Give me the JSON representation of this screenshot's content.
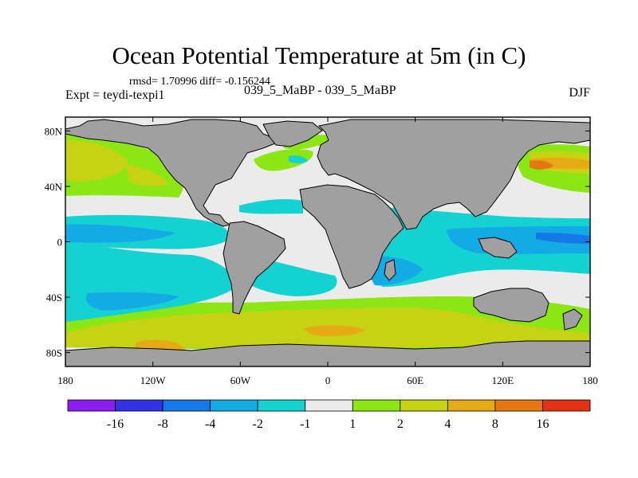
{
  "title": "Ocean Potential Temperature at 5m (in C)",
  "stats_text": "rmsd= 1.70996 diff= -0.156244",
  "left_label": "Expt = teydi-texpi1",
  "center_label": "039_5_MaBP - 039_5_MaBP",
  "right_label": "DJF",
  "map": {
    "projection": "cylindrical-equidistant",
    "lon_range": [
      -180,
      180
    ],
    "lat_range": [
      -90,
      90
    ],
    "x_ticks": [
      {
        "lon": -180,
        "label": "180"
      },
      {
        "lon": -120,
        "label": "120W"
      },
      {
        "lon": -60,
        "label": "60W"
      },
      {
        "lon": 0,
        "label": "0"
      },
      {
        "lon": 60,
        "label": "60E"
      },
      {
        "lon": 120,
        "label": "120E"
      },
      {
        "lon": 180,
        "label": "180"
      }
    ],
    "y_ticks": [
      {
        "lat": 80,
        "label": "80N"
      },
      {
        "lat": 40,
        "label": "40N"
      },
      {
        "lat": 0,
        "label": "0"
      },
      {
        "lat": -40,
        "label": "40S"
      },
      {
        "lat": -80,
        "label": "80S"
      }
    ],
    "land_color": "#a0a0a0",
    "ocean_default_color": "#ebebeb"
  },
  "colorbar": {
    "colors": [
      "#8c1cf0",
      "#3232e6",
      "#1478e6",
      "#14aae6",
      "#14d2d2",
      "#ebebeb",
      "#8ce614",
      "#c8d214",
      "#e6aa14",
      "#e67814",
      "#e63214"
    ],
    "tick_labels": [
      "-16",
      "-8",
      "-4",
      "-2",
      "-1",
      "1",
      "2",
      "4",
      "8",
      "16"
    ]
  }
}
